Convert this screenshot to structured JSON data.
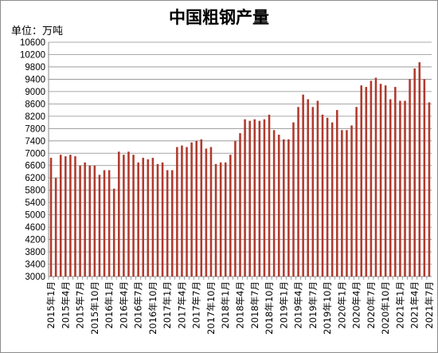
{
  "chart_data": {
    "type": "bar",
    "title": "中国粗钢产量",
    "unit_label": "单位：万吨",
    "color": "#b03a2e",
    "ylim": [
      3000,
      10600
    ],
    "yticks": [
      3000,
      3400,
      3800,
      4200,
      4600,
      5000,
      5400,
      5800,
      6200,
      6600,
      7000,
      7400,
      7800,
      8200,
      8600,
      9000,
      9400,
      9800,
      10200,
      10600
    ],
    "grid": true,
    "categories": [
      "2015年1月",
      "2015年2月",
      "2015年3月",
      "2015年4月",
      "2015年5月",
      "2015年6月",
      "2015年7月",
      "2015年8月",
      "2015年9月",
      "2015年10月",
      "2015年11月",
      "2015年12月",
      "2016年1月",
      "2016年2月",
      "2016年3月",
      "2016年4月",
      "2016年5月",
      "2016年6月",
      "2016年7月",
      "2016年8月",
      "2016年9月",
      "2016年10月",
      "2016年11月",
      "2016年12月",
      "2017年1月",
      "2017年2月",
      "2017年3月",
      "2017年4月",
      "2017年5月",
      "2017年6月",
      "2017年7月",
      "2017年8月",
      "2017年9月",
      "2017年10月",
      "2017年11月",
      "2017年12月",
      "2018年1月",
      "2018年2月",
      "2018年3月",
      "2018年4月",
      "2018年5月",
      "2018年6月",
      "2018年7月",
      "2018年8月",
      "2018年9月",
      "2018年10月",
      "2018年11月",
      "2018年12月",
      "2019年1月",
      "2019年2月",
      "2019年3月",
      "2019年4月",
      "2019年5月",
      "2019年6月",
      "2019年7月",
      "2019年8月",
      "2019年9月",
      "2019年10月",
      "2019年11月",
      "2019年12月",
      "2020年1月",
      "2020年2月",
      "2020年3月",
      "2020年4月",
      "2020年5月",
      "2020年6月",
      "2020年7月",
      "2020年8月",
      "2020年9月",
      "2020年10月",
      "2020年11月",
      "2020年12月",
      "2021年1月",
      "2021年2月",
      "2021年3月",
      "2021年4月",
      "2021年5月",
      "2021年6月",
      "2021年7月"
    ],
    "values": [
      6850,
      6200,
      6950,
      6900,
      6950,
      6900,
      6600,
      6700,
      6600,
      6600,
      6300,
      6450,
      6450,
      5850,
      7050,
      6950,
      7050,
      6950,
      6700,
      6850,
      6800,
      6850,
      6650,
      6700,
      6450,
      6450,
      7200,
      7250,
      7200,
      7350,
      7400,
      7450,
      7150,
      7200,
      6650,
      6700,
      6700,
      6950,
      7400,
      7650,
      8100,
      8050,
      8100,
      8050,
      8100,
      8250,
      7750,
      7600,
      7450,
      7450,
      8000,
      8500,
      8900,
      8750,
      8500,
      8700,
      8250,
      8150,
      8000,
      8400,
      7750,
      7750,
      7900,
      8500,
      9200,
      9150,
      9350,
      9450,
      9250,
      9200,
      8750,
      9150,
      8700,
      8700,
      9400,
      9750,
      9950,
      9400,
      8650
    ],
    "tick_labels": [
      "2015年1月",
      "2015年4月",
      "2015年7月",
      "2015年10月",
      "2016年1月",
      "2016年4月",
      "2016年7月",
      "2016年10月",
      "2017年1月",
      "2017年4月",
      "2017年7月",
      "2017年10月",
      "2018年1月",
      "2018年4月",
      "2018年7月",
      "2018年10月",
      "2019年1月",
      "2019年4月",
      "2019年7月",
      "2019年10月",
      "2020年1月",
      "2020年4月",
      "2020年7月",
      "2020年10月",
      "2021年1月",
      "2021年4月",
      "2021年7月"
    ]
  }
}
